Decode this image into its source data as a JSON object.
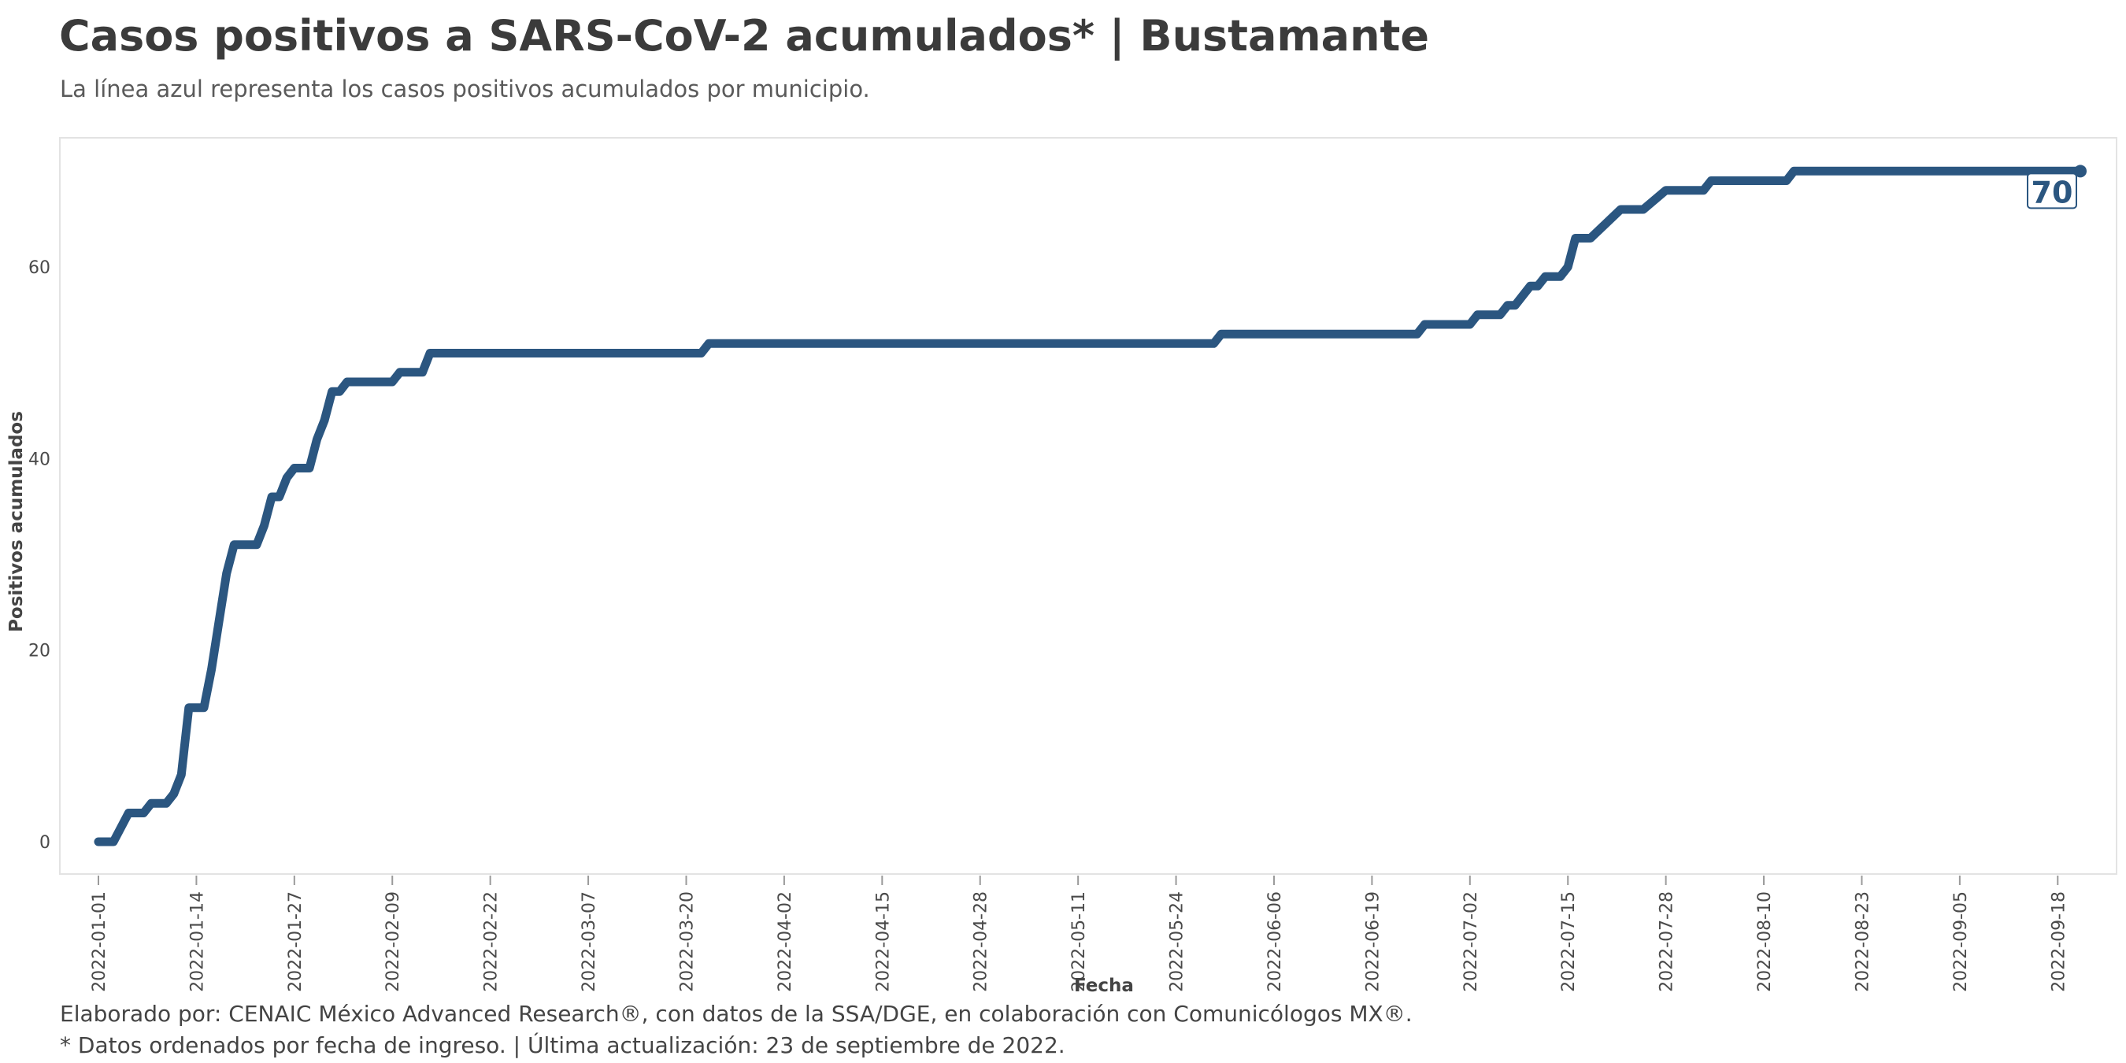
{
  "title": "Casos positivos a SARS-CoV-2 acumulados* | Bustamante",
  "subtitle": "La línea azul representa los casos positivos acumulados por municipio.",
  "caption": {
    "line1": "Elaborado por: CENAIC México Advanced Research®, con datos de la SSA/DGE, en colaboración con Comunicólogos MX®.",
    "line2": "* Datos ordenados por fecha de ingreso. | Última actualización: 23 de septiembre de 2022."
  },
  "colors": {
    "line": "#2b5680",
    "panel_border": "#e3e3e3",
    "label_border": "#2b5680"
  },
  "chart_data": {
    "type": "line",
    "xlabel": "Fecha",
    "ylabel": "Positivos acumulados",
    "x_ticks": [
      "2022-01-01",
      "2022-01-14",
      "2022-01-27",
      "2022-02-09",
      "2022-02-22",
      "2022-03-07",
      "2022-03-20",
      "2022-04-02",
      "2022-04-15",
      "2022-04-28",
      "2022-05-11",
      "2022-05-24",
      "2022-06-06",
      "2022-06-19",
      "2022-07-02",
      "2022-07-15",
      "2022-07-28",
      "2022-08-10",
      "2022-08-23",
      "2022-09-05",
      "2022-09-18"
    ],
    "y_ticks": [
      0,
      20,
      40,
      60
    ],
    "ylim": [
      0,
      70
    ],
    "end_label": "70",
    "series": [
      {
        "points": [
          [
            "2022-01-01",
            0
          ],
          [
            "2022-01-03",
            0
          ],
          [
            "2022-01-05",
            3
          ],
          [
            "2022-01-07",
            3
          ],
          [
            "2022-01-08",
            4
          ],
          [
            "2022-01-10",
            4
          ],
          [
            "2022-01-11",
            5
          ],
          [
            "2022-01-12",
            7
          ],
          [
            "2022-01-13",
            14
          ],
          [
            "2022-01-15",
            14
          ],
          [
            "2022-01-16",
            18
          ],
          [
            "2022-01-17",
            23
          ],
          [
            "2022-01-18",
            28
          ],
          [
            "2022-01-19",
            31
          ],
          [
            "2022-01-22",
            31
          ],
          [
            "2022-01-23",
            33
          ],
          [
            "2022-01-24",
            36
          ],
          [
            "2022-01-25",
            36
          ],
          [
            "2022-01-26",
            38
          ],
          [
            "2022-01-27",
            39
          ],
          [
            "2022-01-29",
            39
          ],
          [
            "2022-01-30",
            42
          ],
          [
            "2022-01-31",
            44
          ],
          [
            "2022-02-01",
            47
          ],
          [
            "2022-02-02",
            47
          ],
          [
            "2022-02-03",
            48
          ],
          [
            "2022-02-09",
            48
          ],
          [
            "2022-02-10",
            49
          ],
          [
            "2022-02-13",
            49
          ],
          [
            "2022-02-14",
            51
          ],
          [
            "2022-03-22",
            51
          ],
          [
            "2022-03-23",
            52
          ],
          [
            "2022-05-29",
            52
          ],
          [
            "2022-05-30",
            53
          ],
          [
            "2022-06-25",
            53
          ],
          [
            "2022-06-26",
            54
          ],
          [
            "2022-07-02",
            54
          ],
          [
            "2022-07-03",
            55
          ],
          [
            "2022-07-06",
            55
          ],
          [
            "2022-07-07",
            56
          ],
          [
            "2022-07-08",
            56
          ],
          [
            "2022-07-10",
            58
          ],
          [
            "2022-07-11",
            58
          ],
          [
            "2022-07-12",
            59
          ],
          [
            "2022-07-14",
            59
          ],
          [
            "2022-07-15",
            60
          ],
          [
            "2022-07-16",
            63
          ],
          [
            "2022-07-18",
            63
          ],
          [
            "2022-07-22",
            66
          ],
          [
            "2022-07-25",
            66
          ],
          [
            "2022-07-28",
            68
          ],
          [
            "2022-08-02",
            68
          ],
          [
            "2022-08-03",
            69
          ],
          [
            "2022-08-13",
            69
          ],
          [
            "2022-08-14",
            70
          ],
          [
            "2022-09-21",
            70
          ]
        ]
      }
    ]
  }
}
